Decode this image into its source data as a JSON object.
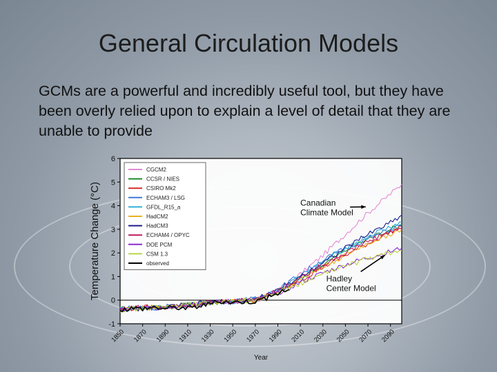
{
  "slide": {
    "title": "General Circulation Models",
    "body": "GCMs are a powerful and incredibly useful tool, but they have been overly relied upon to explain a level of detail that they are unable to provide"
  },
  "chart_data": {
    "type": "line",
    "title": "",
    "xlabel": "Year",
    "ylabel": "Temperature Change (°C)",
    "xlim": [
      1850,
      2100
    ],
    "ylim": [
      -1,
      6
    ],
    "xticks": [
      1850,
      1870,
      1890,
      1910,
      1930,
      1950,
      1970,
      1990,
      2010,
      2030,
      2050,
      2070,
      2090
    ],
    "yticks": [
      -1,
      0,
      1,
      2,
      3,
      4,
      5,
      6
    ],
    "grid": false,
    "legend_position": "top-left",
    "annotations": [
      {
        "text": "Canadian\nClimate Model",
        "x": 2010,
        "y": 4.0,
        "arrow_to": [
          2068,
          3.95
        ]
      },
      {
        "text": "Hadley\nCenter Model",
        "x": 2033,
        "y": 0.8,
        "arrow_to": [
          2085,
          1.9
        ]
      }
    ],
    "series": [
      {
        "name": "CGCM2",
        "color": "#e58ad0",
        "x": [
          1850,
          1870,
          1890,
          1910,
          1930,
          1950,
          1970,
          1990,
          2010,
          2030,
          2050,
          2070,
          2090,
          2100
        ],
        "y": [
          -0.4,
          -0.35,
          -0.3,
          -0.25,
          -0.1,
          -0.05,
          -0.05,
          0.4,
          1.1,
          1.9,
          2.8,
          3.7,
          4.5,
          4.9
        ]
      },
      {
        "name": "CCSR / NIES",
        "color": "#1a8a2a",
        "x": [
          1850,
          1870,
          1890,
          1910,
          1930,
          1950,
          1970,
          1990,
          2010,
          2030,
          2050,
          2070,
          2090,
          2100
        ],
        "y": [
          -0.35,
          -0.3,
          -0.3,
          -0.2,
          -0.1,
          -0.05,
          0.0,
          0.3,
          0.9,
          1.5,
          2.1,
          2.6,
          3.0,
          3.2
        ]
      },
      {
        "name": "CSIRO Mk2",
        "color": "#d42a2a",
        "x": [
          1850,
          1870,
          1890,
          1910,
          1930,
          1950,
          1970,
          1990,
          2010,
          2030,
          2050,
          2070,
          2090,
          2100
        ],
        "y": [
          -0.4,
          -0.3,
          -0.3,
          -0.2,
          -0.1,
          -0.05,
          0.0,
          0.35,
          0.85,
          1.4,
          1.9,
          2.4,
          2.9,
          3.1
        ]
      },
      {
        "name": "ECHAM3 / LSG",
        "color": "#3a7ad8",
        "x": [
          1850,
          1870,
          1890,
          1910,
          1930,
          1950,
          1970,
          1990,
          2010,
          2030,
          2050,
          2070,
          2090,
          2100
        ],
        "y": [
          -0.35,
          -0.3,
          -0.25,
          -0.2,
          -0.1,
          -0.05,
          0.05,
          0.45,
          1.1,
          1.7,
          2.2,
          2.6,
          3.0,
          3.2
        ]
      },
      {
        "name": "GFDL_R15_a",
        "color": "#2ab0d8",
        "x": [
          1850,
          1870,
          1890,
          1910,
          1930,
          1950,
          1970,
          1990,
          2010,
          2030,
          2050,
          2070,
          2090,
          2100
        ],
        "y": [
          -0.4,
          -0.35,
          -0.3,
          -0.2,
          -0.1,
          -0.05,
          0.05,
          0.4,
          1.0,
          1.6,
          2.2,
          2.7,
          3.1,
          3.3
        ]
      },
      {
        "name": "HadCM2",
        "color": "#e8b020",
        "x": [
          1850,
          1870,
          1890,
          1910,
          1930,
          1950,
          1970,
          1990,
          2010,
          2030,
          2050,
          2070,
          2090,
          2100
        ],
        "y": [
          -0.4,
          -0.3,
          -0.3,
          -0.2,
          -0.1,
          -0.05,
          0.0,
          0.35,
          0.9,
          1.4,
          1.9,
          2.4,
          2.8,
          3.0
        ]
      },
      {
        "name": "HadCM3",
        "color": "#1a1a8a",
        "x": [
          1850,
          1870,
          1890,
          1910,
          1930,
          1950,
          1970,
          1990,
          2010,
          2030,
          2050,
          2070,
          2090,
          2100
        ],
        "y": [
          -0.4,
          -0.35,
          -0.3,
          -0.2,
          -0.1,
          -0.05,
          0.05,
          0.4,
          1.0,
          1.6,
          2.2,
          2.8,
          3.3,
          3.6
        ]
      },
      {
        "name": "ECHAM4 / OPYC",
        "color": "#c0185a",
        "x": [
          1850,
          1870,
          1890,
          1910,
          1930,
          1950,
          1970,
          1990,
          2010,
          2030,
          2050,
          2070,
          2090,
          2100
        ],
        "y": [
          -0.35,
          -0.3,
          -0.25,
          -0.2,
          -0.1,
          -0.05,
          0.05,
          0.4,
          0.95,
          1.5,
          2.0,
          2.5,
          2.9,
          3.0
        ]
      },
      {
        "name": "DOE PCM",
        "color": "#8a2ad0",
        "x": [
          1850,
          1870,
          1890,
          1910,
          1930,
          1950,
          1970,
          1990,
          2010,
          2030,
          2050,
          2070,
          2090,
          2100
        ],
        "y": [
          -0.4,
          -0.35,
          -0.3,
          -0.2,
          -0.1,
          -0.05,
          0.0,
          0.3,
          0.75,
          1.15,
          1.5,
          1.8,
          2.05,
          2.2
        ]
      },
      {
        "name": "CSM 1.3",
        "color": "#b8d840",
        "x": [
          1850,
          1870,
          1890,
          1910,
          1930,
          1950,
          1970,
          1990,
          2010,
          2030,
          2050,
          2070,
          2090,
          2100
        ],
        "y": [
          -0.4,
          -0.35,
          -0.3,
          -0.2,
          -0.1,
          -0.05,
          0.0,
          0.3,
          0.7,
          1.1,
          1.45,
          1.75,
          2.0,
          2.1
        ]
      },
      {
        "name": "observed",
        "color": "#000000",
        "x": [
          1850,
          1860,
          1870,
          1880,
          1890,
          1900,
          1910,
          1920,
          1930,
          1940,
          1950,
          1960,
          1970,
          1980,
          1990,
          2000
        ],
        "y": [
          -0.4,
          -0.35,
          -0.35,
          -0.3,
          -0.35,
          -0.3,
          -0.35,
          -0.25,
          -0.15,
          -0.05,
          -0.1,
          -0.05,
          -0.05,
          0.1,
          0.3,
          0.45
        ]
      }
    ]
  }
}
